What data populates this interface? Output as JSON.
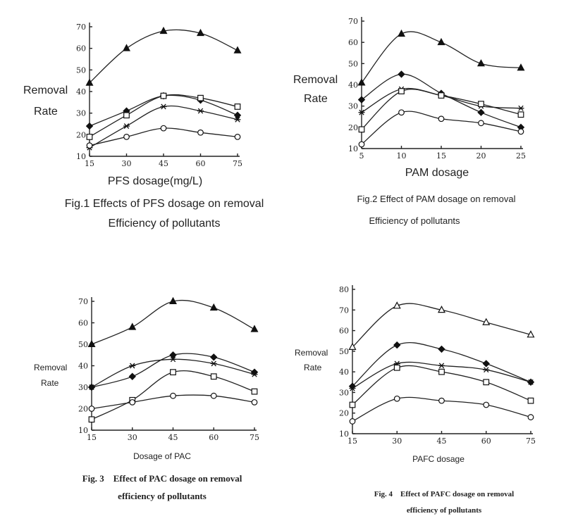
{
  "chart_data": [
    {
      "id": "fig1",
      "type": "line",
      "ylabel_lines": [
        "Removal",
        "Rate"
      ],
      "xlabel": "PFS dosage(mg/L)",
      "caption_lines": [
        "Fig.1 Effects of PFS dosage on removal",
        "Efficiency of pollutants"
      ],
      "x": [
        15,
        30,
        45,
        60,
        75
      ],
      "xlim": [
        15,
        75
      ],
      "ylim": [
        10,
        70
      ],
      "yticks": [
        10,
        20,
        30,
        40,
        50,
        60,
        70
      ],
      "series": [
        {
          "marker": "triangle-filled",
          "values": [
            44,
            60,
            68,
            67,
            59
          ]
        },
        {
          "marker": "diamond-filled",
          "values": [
            24,
            31,
            38,
            36,
            29
          ]
        },
        {
          "marker": "square-open",
          "values": [
            19,
            29,
            38,
            37,
            33
          ]
        },
        {
          "marker": "asterisk",
          "values": [
            14,
            24,
            33,
            31,
            27
          ]
        },
        {
          "marker": "circle-open",
          "values": [
            15,
            19,
            23,
            21,
            19
          ]
        }
      ]
    },
    {
      "id": "fig2",
      "type": "line",
      "ylabel_lines": [
        "Removal",
        "Rate"
      ],
      "xlabel": "PAM dosage",
      "caption_lines": [
        "Fig.2 Effect of PAM dosage on removal",
        "Efficiency of pollutants"
      ],
      "x": [
        5,
        10,
        15,
        20,
        25
      ],
      "xlim": [
        5,
        25
      ],
      "ylim": [
        10,
        70
      ],
      "yticks": [
        10,
        20,
        30,
        40,
        50,
        60,
        70
      ],
      "series": [
        {
          "marker": "triangle-filled",
          "values": [
            41,
            64,
            60,
            50,
            48
          ]
        },
        {
          "marker": "diamond-filled",
          "values": [
            33,
            45,
            36,
            27,
            20
          ]
        },
        {
          "marker": "asterisk",
          "values": [
            27,
            38,
            35,
            30,
            29
          ]
        },
        {
          "marker": "square-open",
          "values": [
            19,
            37,
            35,
            31,
            26
          ]
        },
        {
          "marker": "circle-open",
          "values": [
            12,
            27,
            24,
            22,
            18
          ]
        }
      ]
    },
    {
      "id": "fig3",
      "type": "line",
      "ylabel_lines": [
        "Removal",
        "Rate"
      ],
      "xlabel": "Dosage of PAC",
      "caption_lines": [
        "Fig. 3    Effect of PAC dosage on removal",
        "efficiency of pollutants"
      ],
      "x": [
        15,
        30,
        45,
        60,
        75
      ],
      "xlim": [
        15,
        75
      ],
      "ylim": [
        10,
        70
      ],
      "yticks": [
        10,
        20,
        30,
        40,
        50,
        60,
        70
      ],
      "series": [
        {
          "marker": "triangle-filled",
          "values": [
            50,
            58,
            70,
            67,
            57
          ]
        },
        {
          "marker": "diamond-filled",
          "values": [
            30,
            35,
            45,
            44,
            37
          ]
        },
        {
          "marker": "asterisk",
          "values": [
            30,
            40,
            43,
            41,
            36
          ]
        },
        {
          "marker": "square-open",
          "values": [
            15,
            24,
            37,
            35,
            28
          ]
        },
        {
          "marker": "circle-open",
          "values": [
            20,
            23,
            26,
            26,
            23
          ]
        }
      ]
    },
    {
      "id": "fig4",
      "type": "line",
      "ylabel_lines": [
        "Removal",
        "Rate"
      ],
      "xlabel": "PAFC dosage",
      "caption_lines": [
        "Fig. 4    Effect of PAFC dosage on removal",
        "efficiency of pollutants"
      ],
      "x": [
        15,
        30,
        45,
        60,
        75
      ],
      "xlim": [
        15,
        75
      ],
      "ylim": [
        10,
        80
      ],
      "yticks": [
        10,
        20,
        30,
        40,
        50,
        60,
        70,
        80
      ],
      "series": [
        {
          "marker": "triangle-open",
          "values": [
            52,
            72,
            70,
            64,
            58
          ]
        },
        {
          "marker": "diamond-filled",
          "values": [
            33,
            53,
            51,
            44,
            35
          ]
        },
        {
          "marker": "asterisk",
          "values": [
            32,
            44,
            43,
            41,
            35
          ]
        },
        {
          "marker": "square-open",
          "values": [
            24,
            42,
            40,
            35,
            26
          ]
        },
        {
          "marker": "circle-open",
          "values": [
            16,
            27,
            26,
            24,
            18
          ]
        }
      ]
    }
  ]
}
